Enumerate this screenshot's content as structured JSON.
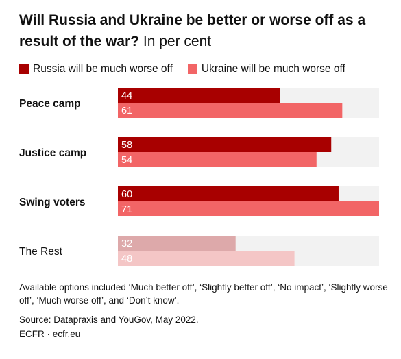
{
  "title": "Will Russia and Ukraine be better or worse off as a result of the war?",
  "subtitle": "In per cent",
  "legend": [
    {
      "label": "Russia will be much worse off",
      "color": "#a80000"
    },
    {
      "label": "Ukraine will be much worse off",
      "color": "#f26566"
    }
  ],
  "chart_data": {
    "type": "bar",
    "orientation": "horizontal",
    "xlim": [
      0,
      100
    ],
    "categories": [
      "Peace camp",
      "Justice camp",
      "Swing voters",
      "The Rest"
    ],
    "category_bold": [
      true,
      true,
      true,
      false
    ],
    "series": [
      {
        "name": "Russia will be much worse off",
        "values": [
          44,
          58,
          60,
          32
        ],
        "color": "#a80000",
        "muted_color": "#dda9aa"
      },
      {
        "name": "Ukraine will be much worse off",
        "values": [
          61,
          54,
          71,
          48
        ],
        "color": "#f26566",
        "muted_color": "#f4c6c6"
      }
    ],
    "track_color": "#f2f2f2"
  },
  "footer": {
    "note": "Available options included ‘Much better off’, ‘Slightly better off’, ‘No impact’, ‘Slightly worse off’, ‘Much worse off’, and ‘Don’t know’.",
    "source": "Source: Datapraxis and YouGov, May 2022.",
    "credit": "ECFR · ecfr.eu"
  }
}
